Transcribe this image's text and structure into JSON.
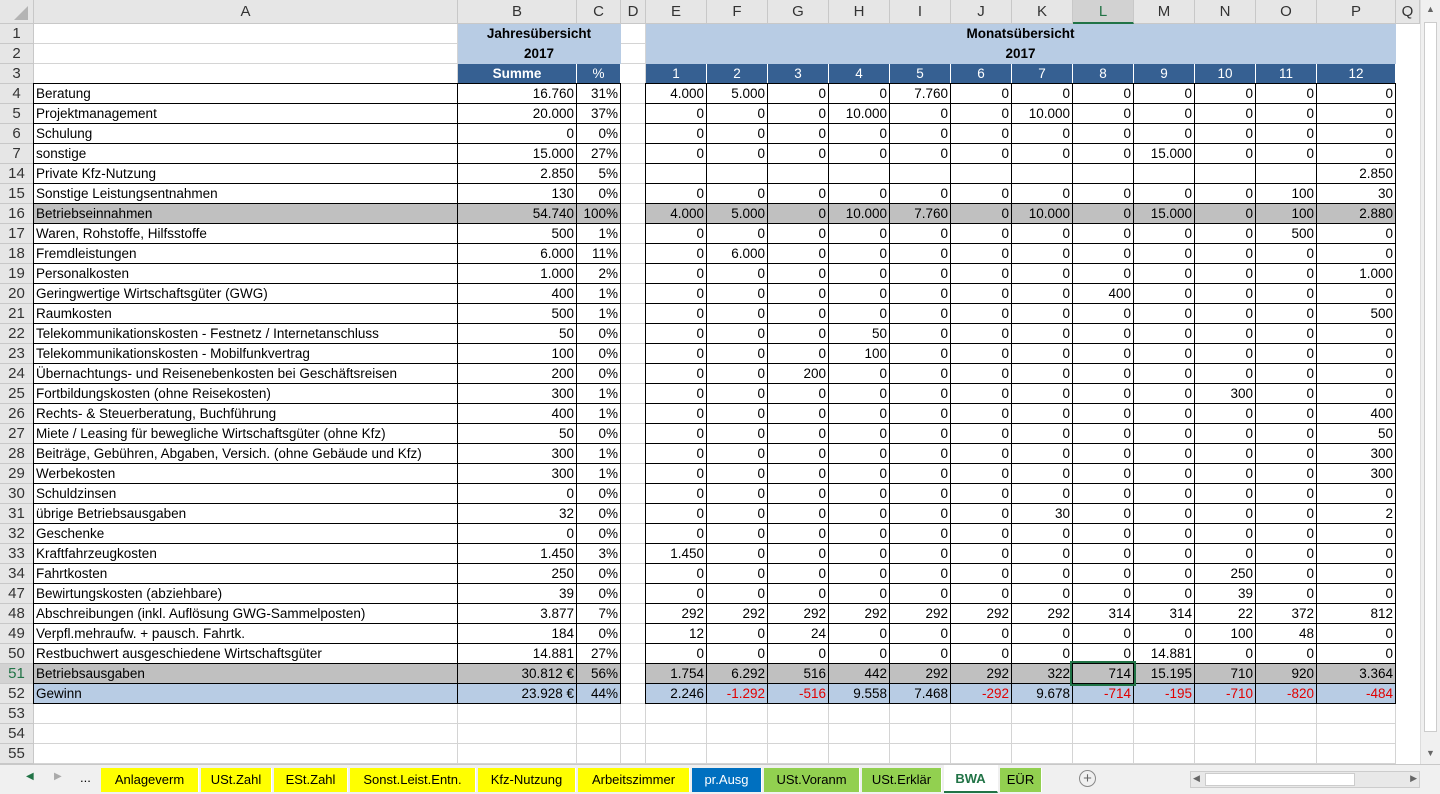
{
  "columns": [
    "A",
    "B",
    "C",
    "D",
    "E",
    "F",
    "G",
    "H",
    "I",
    "J",
    "K",
    "L",
    "M",
    "N",
    "O",
    "P",
    "Q"
  ],
  "selected_cell": "L51",
  "header": {
    "year_title": "Jahresübersicht",
    "year": "2017",
    "month_title": "Monatsübersicht",
    "month_year": "2017",
    "sum_label": "Summe",
    "pct_label": "%",
    "months": [
      "1",
      "2",
      "3",
      "4",
      "5",
      "6",
      "7",
      "8",
      "9",
      "10",
      "11",
      "12"
    ]
  },
  "rows": [
    {
      "n": "4",
      "label": "Beratung",
      "sum": "16.760",
      "pct": "31%",
      "m": [
        "4.000",
        "5.000",
        "0",
        "0",
        "7.760",
        "0",
        "0",
        "0",
        "0",
        "0",
        "0",
        "0"
      ]
    },
    {
      "n": "5",
      "label": "Projektmanagement",
      "sum": "20.000",
      "pct": "37%",
      "m": [
        "0",
        "0",
        "0",
        "10.000",
        "0",
        "0",
        "10.000",
        "0",
        "0",
        "0",
        "0",
        "0"
      ]
    },
    {
      "n": "6",
      "label": "Schulung",
      "sum": "0",
      "pct": "0%",
      "m": [
        "0",
        "0",
        "0",
        "0",
        "0",
        "0",
        "0",
        "0",
        "0",
        "0",
        "0",
        "0"
      ]
    },
    {
      "n": "7",
      "label": "sonstige",
      "sum": "15.000",
      "pct": "27%",
      "m": [
        "0",
        "0",
        "0",
        "0",
        "0",
        "0",
        "0",
        "0",
        "15.000",
        "0",
        "0",
        "0"
      ]
    },
    {
      "n": "14",
      "label": "Private Kfz-Nutzung",
      "sum": "2.850",
      "pct": "5%",
      "m": [
        "",
        "",
        "",
        "",
        "",
        "",
        "",
        "",
        "",
        "",
        "",
        "2.850"
      ]
    },
    {
      "n": "15",
      "label": "Sonstige Leistungsentnahmen",
      "sum": "130",
      "pct": "0%",
      "m": [
        "0",
        "0",
        "0",
        "0",
        "0",
        "0",
        "0",
        "0",
        "0",
        "0",
        "100",
        "30"
      ]
    },
    {
      "n": "16",
      "label": "Betriebseinnahmen",
      "sum": "54.740",
      "pct": "100%",
      "style": "grey",
      "m": [
        "4.000",
        "5.000",
        "0",
        "10.000",
        "7.760",
        "0",
        "10.000",
        "0",
        "15.000",
        "0",
        "100",
        "2.880"
      ]
    },
    {
      "n": "17",
      "label": "Waren, Rohstoffe, Hilfsstoffe",
      "sum": "500",
      "pct": "1%",
      "m": [
        "0",
        "0",
        "0",
        "0",
        "0",
        "0",
        "0",
        "0",
        "0",
        "0",
        "500",
        "0"
      ]
    },
    {
      "n": "18",
      "label": "Fremdleistungen",
      "sum": "6.000",
      "pct": "11%",
      "m": [
        "0",
        "6.000",
        "0",
        "0",
        "0",
        "0",
        "0",
        "0",
        "0",
        "0",
        "0",
        "0"
      ]
    },
    {
      "n": "19",
      "label": "Personalkosten",
      "sum": "1.000",
      "pct": "2%",
      "m": [
        "0",
        "0",
        "0",
        "0",
        "0",
        "0",
        "0",
        "0",
        "0",
        "0",
        "0",
        "1.000"
      ]
    },
    {
      "n": "20",
      "label": "Geringwertige Wirtschaftsgüter (GWG)",
      "sum": "400",
      "pct": "1%",
      "m": [
        "0",
        "0",
        "0",
        "0",
        "0",
        "0",
        "0",
        "400",
        "0",
        "0",
        "0",
        "0"
      ]
    },
    {
      "n": "21",
      "label": "Raumkosten",
      "sum": "500",
      "pct": "1%",
      "m": [
        "0",
        "0",
        "0",
        "0",
        "0",
        "0",
        "0",
        "0",
        "0",
        "0",
        "0",
        "500"
      ]
    },
    {
      "n": "22",
      "label": "Telekommunikationskosten - Festnetz / Internetanschluss",
      "sum": "50",
      "pct": "0%",
      "m": [
        "0",
        "0",
        "0",
        "50",
        "0",
        "0",
        "0",
        "0",
        "0",
        "0",
        "0",
        "0"
      ]
    },
    {
      "n": "23",
      "label": "Telekommunikationskosten - Mobilfunkvertrag",
      "sum": "100",
      "pct": "0%",
      "m": [
        "0",
        "0",
        "0",
        "100",
        "0",
        "0",
        "0",
        "0",
        "0",
        "0",
        "0",
        "0"
      ]
    },
    {
      "n": "24",
      "label": "Übernachtungs- und Reisenebenkosten bei Geschäftsreisen",
      "sum": "200",
      "pct": "0%",
      "m": [
        "0",
        "0",
        "200",
        "0",
        "0",
        "0",
        "0",
        "0",
        "0",
        "0",
        "0",
        "0"
      ]
    },
    {
      "n": "25",
      "label": "Fortbildungskosten (ohne Reisekosten)",
      "sum": "300",
      "pct": "1%",
      "m": [
        "0",
        "0",
        "0",
        "0",
        "0",
        "0",
        "0",
        "0",
        "0",
        "300",
        "0",
        "0"
      ]
    },
    {
      "n": "26",
      "label": "Rechts- & Steuerberatung, Buchführung",
      "sum": "400",
      "pct": "1%",
      "m": [
        "0",
        "0",
        "0",
        "0",
        "0",
        "0",
        "0",
        "0",
        "0",
        "0",
        "0",
        "400"
      ]
    },
    {
      "n": "27",
      "label": "Miete / Leasing für bewegliche Wirtschaftsgüter (ohne Kfz)",
      "sum": "50",
      "pct": "0%",
      "m": [
        "0",
        "0",
        "0",
        "0",
        "0",
        "0",
        "0",
        "0",
        "0",
        "0",
        "0",
        "50"
      ]
    },
    {
      "n": "28",
      "label": "Beiträge, Gebühren, Abgaben, Versich. (ohne Gebäude und Kfz)",
      "sum": "300",
      "pct": "1%",
      "m": [
        "0",
        "0",
        "0",
        "0",
        "0",
        "0",
        "0",
        "0",
        "0",
        "0",
        "0",
        "300"
      ]
    },
    {
      "n": "29",
      "label": "Werbekosten",
      "sum": "300",
      "pct": "1%",
      "m": [
        "0",
        "0",
        "0",
        "0",
        "0",
        "0",
        "0",
        "0",
        "0",
        "0",
        "0",
        "300"
      ]
    },
    {
      "n": "30",
      "label": "Schuldzinsen",
      "sum": "0",
      "pct": "0%",
      "m": [
        "0",
        "0",
        "0",
        "0",
        "0",
        "0",
        "0",
        "0",
        "0",
        "0",
        "0",
        "0"
      ]
    },
    {
      "n": "31",
      "label": "übrige Betriebsausgaben",
      "sum": "32",
      "pct": "0%",
      "m": [
        "0",
        "0",
        "0",
        "0",
        "0",
        "0",
        "30",
        "0",
        "0",
        "0",
        "0",
        "2"
      ]
    },
    {
      "n": "32",
      "label": "Geschenke",
      "sum": "0",
      "pct": "0%",
      "m": [
        "0",
        "0",
        "0",
        "0",
        "0",
        "0",
        "0",
        "0",
        "0",
        "0",
        "0",
        "0"
      ]
    },
    {
      "n": "33",
      "label": "Kraftfahrzeugkosten",
      "sum": "1.450",
      "pct": "3%",
      "m": [
        "1.450",
        "0",
        "0",
        "0",
        "0",
        "0",
        "0",
        "0",
        "0",
        "0",
        "0",
        "0"
      ]
    },
    {
      "n": "34",
      "label": "Fahrtkosten",
      "sum": "250",
      "pct": "0%",
      "m": [
        "0",
        "0",
        "0",
        "0",
        "0",
        "0",
        "0",
        "0",
        "0",
        "250",
        "0",
        "0"
      ]
    },
    {
      "n": "47",
      "label": "Bewirtungskosten (abziehbare)",
      "sum": "39",
      "pct": "0%",
      "m": [
        "0",
        "0",
        "0",
        "0",
        "0",
        "0",
        "0",
        "0",
        "0",
        "39",
        "0",
        "0"
      ]
    },
    {
      "n": "48",
      "label": "Abschreibungen (inkl. Auflösung GWG-Sammelposten)",
      "sum": "3.877",
      "pct": "7%",
      "m": [
        "292",
        "292",
        "292",
        "292",
        "292",
        "292",
        "292",
        "314",
        "314",
        "22",
        "372",
        "812"
      ]
    },
    {
      "n": "49",
      "label": "Verpfl.mehraufw. + pausch. Fahrtk.",
      "sum": "184",
      "pct": "0%",
      "m": [
        "12",
        "0",
        "24",
        "0",
        "0",
        "0",
        "0",
        "0",
        "0",
        "100",
        "48",
        "0"
      ]
    },
    {
      "n": "50",
      "label": "Restbuchwert ausgeschiedene Wirtschaftsgüter",
      "sum": "14.881",
      "pct": "27%",
      "m": [
        "0",
        "0",
        "0",
        "0",
        "0",
        "0",
        "0",
        "0",
        "14.881",
        "0",
        "0",
        "0"
      ]
    },
    {
      "n": "51",
      "label": "Betriebsausgaben",
      "sum": "30.812 €",
      "pct": "56%",
      "style": "grey",
      "m": [
        "1.754",
        "6.292",
        "516",
        "442",
        "292",
        "292",
        "322",
        "714",
        "15.195",
        "710",
        "920",
        "3.364"
      ]
    },
    {
      "n": "52",
      "label": "Gewinn",
      "sum": "23.928 €",
      "pct": "44%",
      "style": "blue",
      "m": [
        "2.246",
        "-1.292",
        "-516",
        "9.558",
        "7.468",
        "-292",
        "9.678",
        "-714",
        "-195",
        "-710",
        "-820",
        "-484"
      ]
    }
  ],
  "empty_rows": [
    "53",
    "54",
    "55"
  ],
  "tabs": [
    {
      "label": "Anlageverm",
      "color": "#ffff00"
    },
    {
      "label": "USt.Zahl",
      "color": "#ffff00"
    },
    {
      "label": "ESt.Zahl",
      "color": "#ffff00"
    },
    {
      "label": "Sonst.Leist.Entn.",
      "color": "#ffff00"
    },
    {
      "label": "Kfz-Nutzung",
      "color": "#ffff00"
    },
    {
      "label": "Arbeitszimmer",
      "color": "#ffff00"
    },
    {
      "label": "pr.Ausg",
      "color": "#0070c0"
    },
    {
      "label": "USt.Voranm",
      "color": "#92d050"
    },
    {
      "label": "USt.Erklär",
      "color": "#92d050"
    },
    {
      "label": "BWA",
      "color": "#ffffff",
      "active": true
    },
    {
      "label": "EÜR",
      "color": "#92d050"
    }
  ],
  "tab_nav": {
    "more": "..."
  },
  "colors": {
    "header_light": "#b8cce4",
    "header_dark": "#366092",
    "total_grey": "#c0c0c0",
    "negative": "#e00000",
    "selection": "#217346"
  }
}
